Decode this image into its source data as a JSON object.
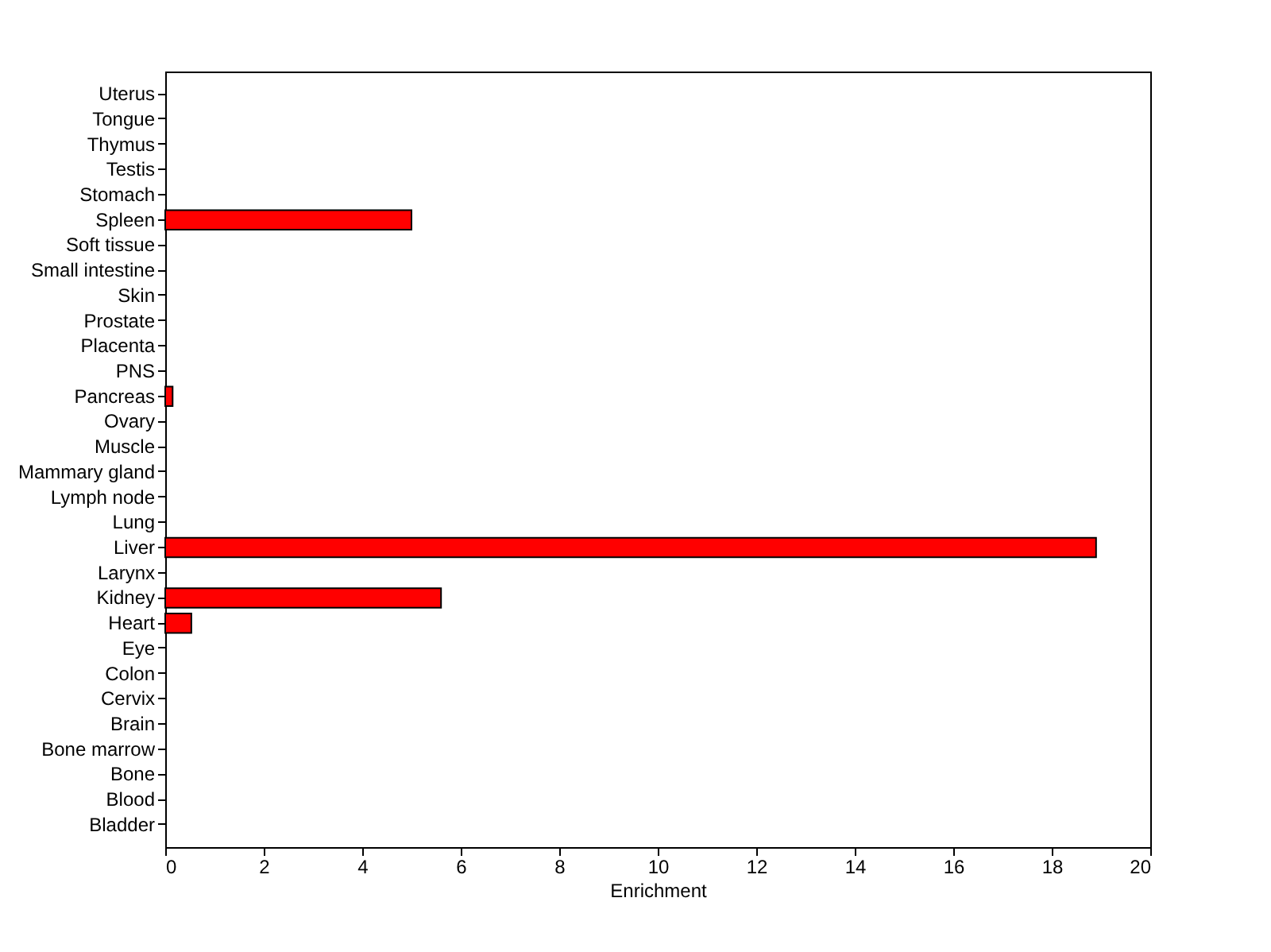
{
  "chart_data": {
    "type": "bar",
    "orientation": "horizontal",
    "xlabel": "Enrichment",
    "categories": [
      "Uterus",
      "Tongue",
      "Thymus",
      "Testis",
      "Stomach",
      "Spleen",
      "Soft tissue",
      "Small intestine",
      "Skin",
      "Prostate",
      "Placenta",
      "PNS",
      "Pancreas",
      "Ovary",
      "Muscle",
      "Mammary gland",
      "Lymph node",
      "Lung",
      "Liver",
      "Larynx",
      "Kidney",
      "Heart",
      "Eye",
      "Colon",
      "Cervix",
      "Brain",
      "Bone marrow",
      "Bone",
      "Blood",
      "Bladder"
    ],
    "values": [
      0,
      0,
      0,
      0,
      0,
      5.0,
      0,
      0,
      0,
      0,
      0,
      0,
      0.15,
      0,
      0,
      0,
      0,
      0,
      18.9,
      0,
      5.6,
      0.53,
      0,
      0,
      0,
      0,
      0,
      0,
      0,
      0
    ],
    "color": "#ff0000",
    "xlim": [
      0,
      20
    ],
    "xticks": [
      0,
      2,
      4,
      6,
      8,
      10,
      12,
      14,
      16,
      18,
      20
    ],
    "grid": false,
    "legend": false
  }
}
